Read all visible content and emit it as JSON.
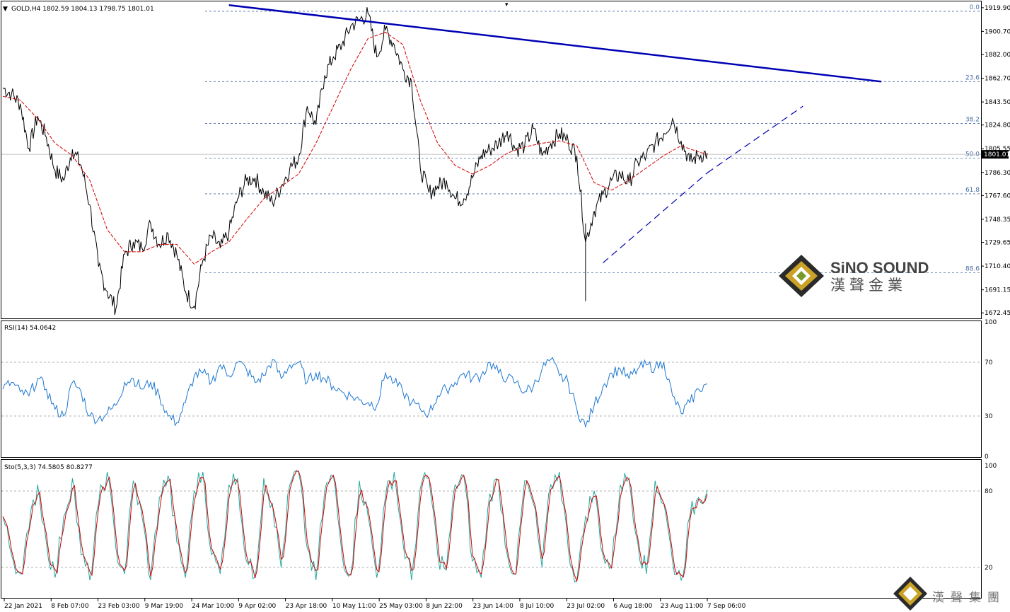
{
  "header": {
    "symbol_info": "GOLD,H4  1802.59 1804.13 1798.75 1801.01",
    "rsi_info": "RSI(14) 54.0642",
    "sto_info": "Sto(5,3,3) 74.5805 80.8277"
  },
  "brand": {
    "name_en": "SiNO SOUND",
    "name_cn": "漢聲金業",
    "corner_cn": "漢聲集團"
  },
  "colors": {
    "price": "#000000",
    "ma": "#d40000",
    "trendline": "#0000b3",
    "rsi": "#1e78d2",
    "sto_main": "#20a8a0",
    "sto_signal": "#d40000",
    "fib": "#4a6fa5",
    "gold": "#c9a227"
  },
  "chart_data": {
    "type": "line",
    "instrument": "GOLD",
    "timeframe": "H4",
    "last_price": "1801.01",
    "price_axis": {
      "ticks": [
        "1919.90",
        "1900.70",
        "1882.00",
        "1862.70",
        "1843.50",
        "1824.80",
        "1805.55",
        "1786.30",
        "1767.60",
        "1748.35",
        "1729.65",
        "1710.40",
        "1691.15",
        "1672.45"
      ],
      "ylim": [
        1668,
        1925
      ]
    },
    "time_axis": [
      "22 Jan 2021",
      "8 Feb 07:00",
      "23 Feb 03:00",
      "9 Mar 19:00",
      "24 Mar 10:00",
      "9 Apr 02:00",
      "23 Apr 18:00",
      "10 May 11:00",
      "25 May 03:00",
      "8 Jun 22:00",
      "23 Jun 14:00",
      "8 Jul 10:00",
      "23 Jul 02:00",
      "6 Aug 18:00",
      "23 Aug 11:00",
      "7 Sep 06:00"
    ],
    "price_path": [
      [
        0,
        1855
      ],
      [
        1,
        1850
      ],
      [
        2,
        1842
      ],
      [
        3,
        1806
      ],
      [
        4,
        1832
      ],
      [
        5,
        1815
      ],
      [
        6,
        1788
      ],
      [
        7,
        1780
      ],
      [
        8,
        1805
      ],
      [
        9,
        1792
      ],
      [
        10,
        1760
      ],
      [
        11,
        1710
      ],
      [
        12,
        1690
      ],
      [
        13,
        1676
      ],
      [
        14,
        1720
      ],
      [
        15,
        1730
      ],
      [
        16,
        1725
      ],
      [
        17,
        1745
      ],
      [
        18,
        1728
      ],
      [
        19,
        1737
      ],
      [
        20,
        1720
      ],
      [
        21,
        1690
      ],
      [
        22,
        1678
      ],
      [
        23,
        1715
      ],
      [
        24,
        1735
      ],
      [
        25,
        1725
      ],
      [
        26,
        1738
      ],
      [
        27,
        1765
      ],
      [
        28,
        1780
      ],
      [
        29,
        1782
      ],
      [
        30,
        1770
      ],
      [
        31,
        1762
      ],
      [
        32,
        1775
      ],
      [
        33,
        1790
      ],
      [
        34,
        1798
      ],
      [
        35,
        1840
      ],
      [
        36,
        1825
      ],
      [
        37,
        1865
      ],
      [
        38,
        1880
      ],
      [
        39,
        1890
      ],
      [
        40,
        1905
      ],
      [
        41,
        1910
      ],
      [
        42,
        1915
      ],
      [
        43,
        1880
      ],
      [
        44,
        1902
      ],
      [
        45,
        1890
      ],
      [
        46,
        1870
      ],
      [
        47,
        1860
      ],
      [
        48,
        1790
      ],
      [
        49,
        1770
      ],
      [
        50,
        1775
      ],
      [
        51,
        1780
      ],
      [
        52,
        1765
      ],
      [
        53,
        1765
      ],
      [
        54,
        1782
      ],
      [
        55,
        1800
      ],
      [
        56,
        1805
      ],
      [
        57,
        1810
      ],
      [
        58,
        1820
      ],
      [
        59,
        1805
      ],
      [
        60,
        1808
      ],
      [
        61,
        1822
      ],
      [
        62,
        1800
      ],
      [
        63,
        1810
      ],
      [
        64,
        1818
      ],
      [
        65,
        1812
      ],
      [
        66,
        1800
      ],
      [
        67,
        1730
      ],
      [
        68,
        1755
      ],
      [
        69,
        1768
      ],
      [
        70,
        1780
      ],
      [
        71,
        1785
      ],
      [
        72,
        1778
      ],
      [
        73,
        1795
      ],
      [
        74,
        1800
      ],
      [
        75,
        1810
      ],
      [
        76,
        1818
      ],
      [
        77,
        1830
      ],
      [
        78,
        1812
      ],
      [
        79,
        1795
      ],
      [
        80,
        1800
      ],
      [
        81,
        1802
      ]
    ],
    "price_low_spike": [
      67,
      1682
    ],
    "ma_path": [
      [
        0,
        1848
      ],
      [
        2,
        1845
      ],
      [
        4,
        1830
      ],
      [
        6,
        1810
      ],
      [
        8,
        1800
      ],
      [
        10,
        1780
      ],
      [
        12,
        1740
      ],
      [
        14,
        1722
      ],
      [
        16,
        1722
      ],
      [
        18,
        1728
      ],
      [
        20,
        1728
      ],
      [
        22,
        1712
      ],
      [
        24,
        1722
      ],
      [
        26,
        1730
      ],
      [
        28,
        1748
      ],
      [
        30,
        1765
      ],
      [
        32,
        1775
      ],
      [
        34,
        1785
      ],
      [
        36,
        1810
      ],
      [
        38,
        1840
      ],
      [
        40,
        1870
      ],
      [
        42,
        1895
      ],
      [
        44,
        1900
      ],
      [
        46,
        1890
      ],
      [
        48,
        1845
      ],
      [
        50,
        1810
      ],
      [
        52,
        1792
      ],
      [
        54,
        1785
      ],
      [
        56,
        1792
      ],
      [
        58,
        1802
      ],
      [
        60,
        1807
      ],
      [
        62,
        1810
      ],
      [
        64,
        1812
      ],
      [
        66,
        1808
      ],
      [
        68,
        1778
      ],
      [
        70,
        1772
      ],
      [
        72,
        1780
      ],
      [
        74,
        1790
      ],
      [
        76,
        1800
      ],
      [
        78,
        1808
      ],
      [
        80,
        1803
      ],
      [
        81,
        1801
      ]
    ],
    "trendline_resistance": [
      [
        26,
        1922
      ],
      [
        101,
        1860
      ]
    ],
    "trendline_support": [
      [
        69,
        1713
      ],
      [
        81,
        1786
      ]
    ],
    "trendline_support_ext": [
      [
        81,
        1786
      ],
      [
        92,
        1840
      ]
    ],
    "fibonacci": [
      {
        "label": "0.0",
        "price": 1917
      },
      {
        "label": "23.6",
        "price": 1860
      },
      {
        "label": "38.2",
        "price": 1826
      },
      {
        "label": "50.0",
        "price": 1798
      },
      {
        "label": "61.8",
        "price": 1769
      },
      {
        "label": "88.6",
        "price": 1705
      }
    ],
    "rsi": {
      "ticks": [
        "100",
        "70",
        "30",
        "0"
      ],
      "levels": [
        70,
        30
      ],
      "values": [
        50,
        55,
        48,
        45,
        58,
        50,
        35,
        30,
        55,
        48,
        30,
        28,
        32,
        38,
        55,
        58,
        50,
        55,
        45,
        30,
        25,
        40,
        60,
        62,
        55,
        68,
        60,
        70,
        65,
        55,
        60,
        72,
        58,
        68,
        70,
        55,
        62,
        58,
        52,
        48,
        45,
        42,
        40,
        38,
        62,
        55,
        48,
        40,
        35,
        32,
        45,
        50,
        55,
        62,
        58,
        60,
        70,
        62,
        58,
        55,
        48,
        52,
        65,
        72,
        60,
        55,
        35,
        22,
        38,
        52,
        62,
        65,
        58,
        65,
        68,
        66,
        70,
        45,
        32,
        40,
        50,
        54
      ]
    },
    "stochastic": {
      "ticks": [
        "100",
        "80",
        "20"
      ],
      "levels": [
        80,
        20
      ],
      "values": [
        60,
        30,
        15,
        50,
        85,
        40,
        12,
        60,
        90,
        30,
        10,
        70,
        95,
        35,
        15,
        88,
        60,
        10,
        75,
        92,
        40,
        12,
        80,
        95,
        30,
        15,
        85,
        90,
        25,
        12,
        90,
        70,
        20,
        85,
        95,
        35,
        10,
        80,
        92,
        30,
        15,
        88,
        60,
        12,
        75,
        95,
        40,
        10,
        82,
        90,
        30,
        18,
        85,
        92,
        25,
        12,
        78,
        88,
        30,
        15,
        88,
        70,
        20,
        85,
        95,
        35,
        10,
        60,
        80,
        30,
        20,
        85,
        90,
        40,
        15,
        88,
        70,
        25,
        10,
        60,
        75,
        81
      ]
    }
  }
}
